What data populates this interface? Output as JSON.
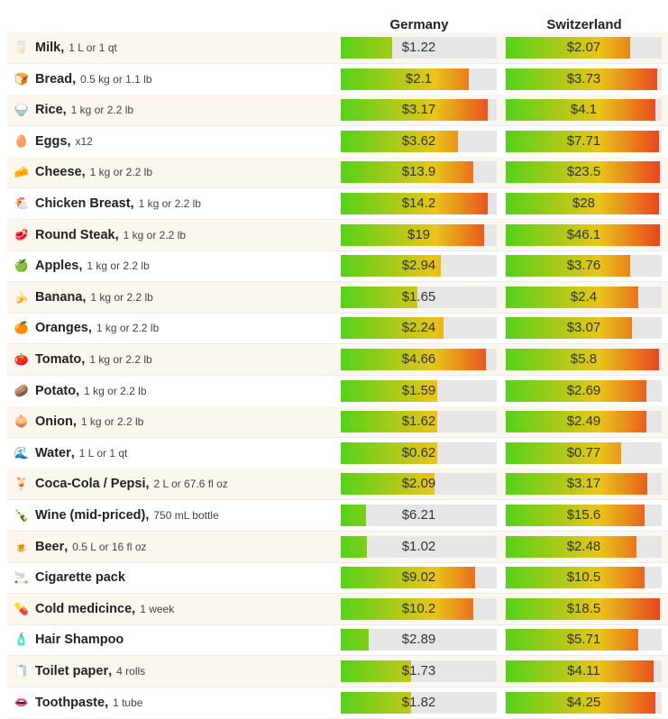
{
  "columns": {
    "germany": "Germany",
    "switzerland": "Switzerland"
  },
  "colors": {
    "low": "#55d11a",
    "mid": "#e9c51a",
    "high": "#e7411f",
    "track": "#e6e6e6",
    "stripe": "#fbf7ef"
  },
  "rows": [
    {
      "emoji": "🥛",
      "name": "Milk",
      "qty": "1 L or 1 qt",
      "de": {
        "label": "$1.22",
        "fill": 0.33
      },
      "ch": {
        "label": "$2.07",
        "fill": 0.8
      }
    },
    {
      "emoji": "🍞",
      "name": "Bread",
      "qty": "0.5 kg or 1.1 lb",
      "de": {
        "label": "$2.1",
        "fill": 0.82
      },
      "ch": {
        "label": "$3.73",
        "fill": 0.97
      }
    },
    {
      "emoji": "🍚",
      "name": "Rice",
      "qty": "1 kg or 2.2 lb",
      "de": {
        "label": "$3.17",
        "fill": 0.94
      },
      "ch": {
        "label": "$4.1",
        "fill": 0.96
      }
    },
    {
      "emoji": "🥚",
      "name": "Eggs",
      "qty": "x12",
      "de": {
        "label": "$3.62",
        "fill": 0.75
      },
      "ch": {
        "label": "$7.71",
        "fill": 0.98
      }
    },
    {
      "emoji": "🧀",
      "name": "Cheese",
      "qty": "1 kg or 2.2 lb",
      "de": {
        "label": "$13.9",
        "fill": 0.85
      },
      "ch": {
        "label": "$23.5",
        "fill": 0.99
      }
    },
    {
      "emoji": "🐔",
      "name": "Chicken Breast",
      "qty": "1 kg or 2.2 lb",
      "de": {
        "label": "$14.2",
        "fill": 0.94
      },
      "ch": {
        "label": "$28",
        "fill": 0.98
      }
    },
    {
      "emoji": "🥩",
      "name": "Round Steak",
      "qty": "1 kg or 2.2 lb",
      "de": {
        "label": "$19",
        "fill": 0.92
      },
      "ch": {
        "label": "$46.1",
        "fill": 0.99
      }
    },
    {
      "emoji": "🍏",
      "name": "Apples",
      "qty": "1 kg or 2.2 lb",
      "de": {
        "label": "$2.94",
        "fill": 0.64
      },
      "ch": {
        "label": "$3.76",
        "fill": 0.8
      }
    },
    {
      "emoji": "🍌",
      "name": "Banana",
      "qty": "1 kg or 2.2 lb",
      "de": {
        "label": "$1.65",
        "fill": 0.49
      },
      "ch": {
        "label": "$2.4",
        "fill": 0.85
      }
    },
    {
      "emoji": "🍊",
      "name": "Oranges",
      "qty": "1 kg or 2.2 lb",
      "de": {
        "label": "$2.24",
        "fill": 0.66
      },
      "ch": {
        "label": "$3.07",
        "fill": 0.81
      }
    },
    {
      "emoji": "🍅",
      "name": "Tomato",
      "qty": "1 kg or 2.2 lb",
      "de": {
        "label": "$4.66",
        "fill": 0.93
      },
      "ch": {
        "label": "$5.8",
        "fill": 0.98
      }
    },
    {
      "emoji": "🥔",
      "name": "Potato",
      "qty": "1 kg or 2.2 lb",
      "de": {
        "label": "$1.59",
        "fill": 0.62
      },
      "ch": {
        "label": "$2.69",
        "fill": 0.9
      }
    },
    {
      "emoji": "🧅",
      "name": "Onion",
      "qty": "1 kg or 2.2 lb",
      "de": {
        "label": "$1.62",
        "fill": 0.62
      },
      "ch": {
        "label": "$2.49",
        "fill": 0.9
      }
    },
    {
      "emoji": "🌊",
      "name": "Water",
      "qty": "1 L or 1 qt",
      "de": {
        "label": "$0.62",
        "fill": 0.62
      },
      "ch": {
        "label": "$0.77",
        "fill": 0.74
      }
    },
    {
      "emoji": "🍹",
      "name": "Coca-Cola / Pepsi",
      "qty": "2 L or 67.6 fl oz",
      "de": {
        "label": "$2.09",
        "fill": 0.6
      },
      "ch": {
        "label": "$3.17",
        "fill": 0.91
      }
    },
    {
      "emoji": "🍾",
      "name": "Wine (mid-priced)",
      "qty": "750 mL bottle",
      "de": {
        "label": "$6.21",
        "fill": 0.16
      },
      "ch": {
        "label": "$15.6",
        "fill": 0.89
      }
    },
    {
      "emoji": "🍺",
      "name": "Beer",
      "qty": "0.5 L or 16 fl oz",
      "de": {
        "label": "$1.02",
        "fill": 0.17
      },
      "ch": {
        "label": "$2.48",
        "fill": 0.84
      }
    },
    {
      "emoji": "🚬",
      "name": "Cigarette pack",
      "qty": "",
      "de": {
        "label": "$9.02",
        "fill": 0.86
      },
      "ch": {
        "label": "$10.5",
        "fill": 0.89
      }
    },
    {
      "emoji": "💊",
      "name": "Cold medicince",
      "qty": "1 week",
      "de": {
        "label": "$10.2",
        "fill": 0.85
      },
      "ch": {
        "label": "$18.5",
        "fill": 0.99
      }
    },
    {
      "emoji": "🧴",
      "name": "Hair Shampoo",
      "qty": "",
      "de": {
        "label": "$2.89",
        "fill": 0.18
      },
      "ch": {
        "label": "$5.71",
        "fill": 0.85
      }
    },
    {
      "emoji": "🧻",
      "name": "Toilet paper",
      "qty": "4 rolls",
      "de": {
        "label": "$1.73",
        "fill": 0.45
      },
      "ch": {
        "label": "$4.11",
        "fill": 0.95
      }
    },
    {
      "emoji": "👄",
      "name": "Toothpaste",
      "qty": "1 tube",
      "de": {
        "label": "$1.82",
        "fill": 0.45
      },
      "ch": {
        "label": "$4.25",
        "fill": 0.96
      }
    }
  ]
}
